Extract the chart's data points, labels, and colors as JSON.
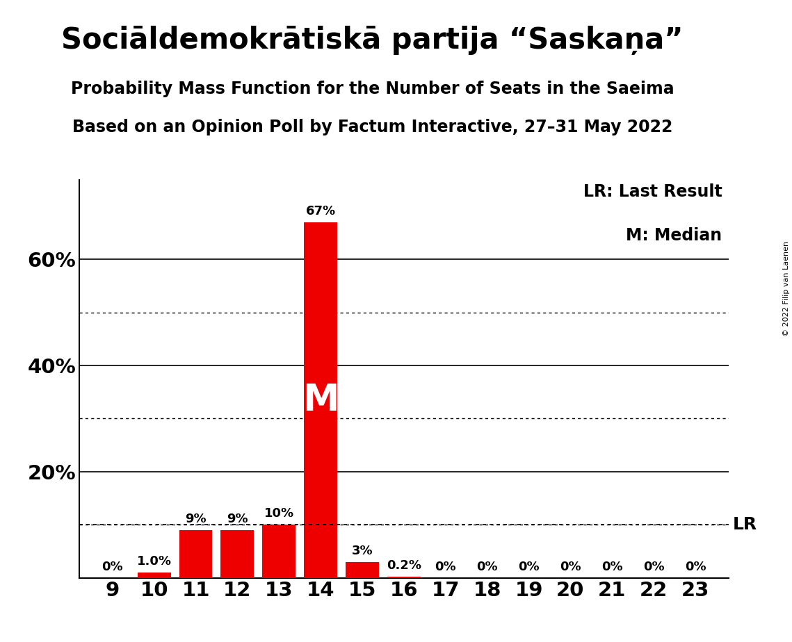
{
  "title": "Sociāldemokrātiskā partija “Saskaņa”",
  "subtitle1": "Probability Mass Function for the Number of Seats in the Saeima",
  "subtitle2": "Based on an Opinion Poll by Factum Interactive, 27–31 May 2022",
  "copyright": "© 2022 Filip van Laenen",
  "seats": [
    9,
    10,
    11,
    12,
    13,
    14,
    15,
    16,
    17,
    18,
    19,
    20,
    21,
    22,
    23
  ],
  "values": [
    0.0,
    1.0,
    9.0,
    9.0,
    10.0,
    67.0,
    3.0,
    0.2,
    0.0,
    0.0,
    0.0,
    0.0,
    0.0,
    0.0,
    0.0
  ],
  "labels": [
    "0%",
    "1.0%",
    "9%",
    "9%",
    "10%",
    "67%",
    "3%",
    "0.2%",
    "0%",
    "0%",
    "0%",
    "0%",
    "0%",
    "0%",
    "0%"
  ],
  "bar_color": "#EE0000",
  "median_seat": 14,
  "median_label": "M",
  "lr_value": 10.0,
  "lr_label": "LR",
  "ylim": [
    0,
    75
  ],
  "solid_gridlines": [
    20,
    40,
    60
  ],
  "dotted_gridlines": [
    10,
    30,
    50
  ],
  "background_color": "#FFFFFF",
  "legend_lr": "LR: Last Result",
  "legend_m": "M: Median",
  "title_fontsize": 30,
  "subtitle_fontsize": 17,
  "axis_fontsize": 21,
  "label_fontsize": 13,
  "legend_fontsize": 17,
  "median_fontsize": 38,
  "lr_fontsize": 18,
  "copyright_fontsize": 8
}
